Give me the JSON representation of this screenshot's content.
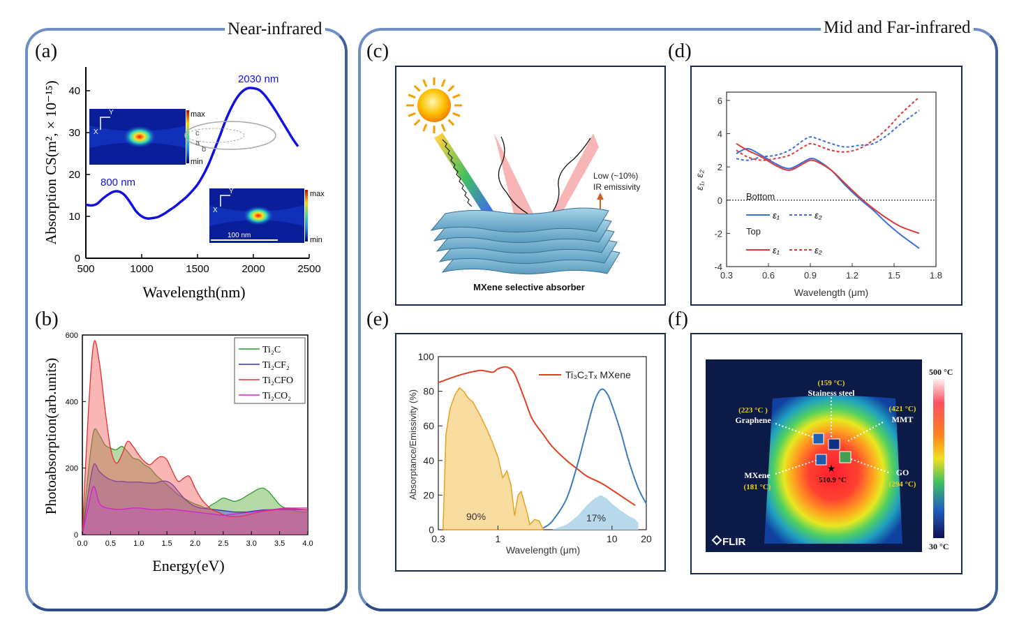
{
  "sections": {
    "left_title": "Near-infrared",
    "right_title": "Mid and Far-infrared"
  },
  "panel_letters": {
    "a": "(a)",
    "b": "(b)",
    "c": "(c)",
    "d": "(d)",
    "e": "(e)",
    "f": "(f)"
  },
  "chart_data": [
    {
      "panel": "a",
      "type": "line",
      "xlabel": "Wavelength(nm)",
      "ylabel": "Absorption CS(m², × 10⁻¹⁵)",
      "xlim": [
        500,
        2500
      ],
      "ylim": [
        0,
        45
      ],
      "xticks": [
        500,
        1000,
        1500,
        2000,
        2500
      ],
      "yticks": [
        0,
        10,
        20,
        30,
        40
      ],
      "color": "#1010e0",
      "x": [
        500,
        550,
        600,
        650,
        700,
        750,
        800,
        850,
        900,
        950,
        1000,
        1050,
        1100,
        1150,
        1200,
        1250,
        1300,
        1350,
        1400,
        1450,
        1500,
        1550,
        1600,
        1650,
        1700,
        1750,
        1800,
        1850,
        1900,
        1950,
        2000,
        2050,
        2100,
        2150,
        2200,
        2250,
        2300,
        2350,
        2400
      ],
      "y": [
        12.8,
        12.6,
        13.0,
        14.2,
        15.2,
        15.9,
        15.9,
        15.0,
        13.2,
        11.2,
        10.0,
        9.5,
        9.6,
        9.9,
        10.6,
        11.5,
        12.4,
        13.5,
        14.6,
        16.0,
        17.6,
        19.8,
        22.5,
        25.8,
        29.2,
        32.8,
        35.8,
        38.2,
        39.8,
        40.6,
        40.6,
        40.2,
        39.0,
        37.2,
        35.2,
        33.0,
        30.8,
        28.6,
        26.7
      ],
      "annotations": [
        "2030 nm",
        "800 nm"
      ],
      "inset_labels": {
        "max": "max",
        "min": "min",
        "c": "c",
        "a": "a",
        "b": "b",
        "scale": "100 nm",
        "axis_x": "X",
        "axis_y": "Y"
      }
    },
    {
      "panel": "b",
      "type": "area",
      "xlabel": "Energy(eV)",
      "ylabel": "Photoabsorption(arb.units)",
      "xlim": [
        0.0,
        4.0
      ],
      "ylim": [
        0,
        600
      ],
      "xticks": [
        "0.0",
        "0.5",
        "1.0",
        "1.5",
        "2.0",
        "2.5",
        "3.0",
        "3.5",
        "4.0"
      ],
      "yticks": [
        "0",
        "200",
        "400",
        "600"
      ],
      "x": [
        0.0,
        0.1,
        0.2,
        0.3,
        0.4,
        0.5,
        0.6,
        0.7,
        0.8,
        0.9,
        1.0,
        1.1,
        1.2,
        1.3,
        1.4,
        1.5,
        1.6,
        1.7,
        1.8,
        1.9,
        2.0,
        2.1,
        2.2,
        2.3,
        2.4,
        2.5,
        2.6,
        2.7,
        2.8,
        2.9,
        3.0,
        3.1,
        3.2,
        3.3,
        3.4,
        3.5,
        3.6,
        3.7,
        3.8,
        3.9,
        4.0
      ],
      "series": [
        {
          "name": "Ti₂C",
          "color": "#2e9e2e",
          "fill": "rgba(90,170,60,0.45)",
          "values": [
            0,
            180,
            310,
            300,
            270,
            260,
            255,
            265,
            250,
            230,
            225,
            210,
            200,
            180,
            165,
            150,
            135,
            120,
            110,
            100,
            92,
            86,
            80,
            90,
            100,
            110,
            105,
            100,
            105,
            115,
            125,
            135,
            140,
            130,
            110,
            90,
            80,
            75,
            70,
            68,
            68
          ]
        },
        {
          "name": "Ti₂CF₂",
          "color": "#3030c0",
          "fill": "rgba(80,70,200,0.40)",
          "values": [
            0,
            120,
            210,
            190,
            175,
            165,
            160,
            160,
            158,
            158,
            158,
            156,
            155,
            155,
            160,
            160,
            150,
            130,
            110,
            95,
            85,
            80,
            78,
            76,
            74,
            72,
            70,
            68,
            68,
            68,
            70,
            72,
            74,
            75,
            75,
            75,
            75,
            75,
            75,
            75,
            75
          ]
        },
        {
          "name": "Ti₂CFO",
          "color": "#e03030",
          "fill": "rgba(245,90,90,0.45)",
          "values": [
            0,
            350,
            575,
            520,
            380,
            260,
            215,
            240,
            280,
            265,
            240,
            220,
            210,
            225,
            235,
            225,
            190,
            160,
            170,
            175,
            140,
            110,
            90,
            75,
            68,
            60,
            55,
            54,
            55,
            58,
            62,
            66,
            70,
            72,
            74,
            76,
            78,
            78,
            77,
            76,
            75
          ]
        },
        {
          "name": "Ti₂CO₂",
          "color": "#d020d0",
          "fill": "rgba(200,70,200,0.30)",
          "values": [
            0,
            80,
            145,
            95,
            82,
            78,
            76,
            76,
            78,
            80,
            80,
            78,
            76,
            75,
            76,
            77,
            76,
            74,
            72,
            70,
            68,
            66,
            64,
            62,
            60,
            58,
            60,
            62,
            64,
            66,
            68,
            70,
            72,
            74,
            76,
            78,
            80,
            80,
            80,
            80,
            80
          ]
        }
      ]
    },
    {
      "panel": "c",
      "type": "diagram",
      "caption": "MXene selective absorber",
      "note_line1": "Low (~10%)",
      "note_line2": "IR emissivity"
    },
    {
      "panel": "d",
      "type": "line",
      "xlabel": "Wavelength (μm)",
      "ylabel": "ε₁, ε₂",
      "xlim": [
        0.3,
        1.8
      ],
      "ylim": [
        -4,
        6.5
      ],
      "xticks": [
        "0.3",
        "0.6",
        "0.9",
        "1.2",
        "1.5",
        "1.8"
      ],
      "yticks": [
        "-4",
        "-2",
        "0",
        "2",
        "4",
        "6"
      ],
      "legend": {
        "bottom": "Bottom",
        "top": "Top",
        "e1": "ε₁",
        "e2": "ε₂"
      },
      "x": [
        0.37,
        0.45,
        0.55,
        0.65,
        0.75,
        0.85,
        0.9,
        0.95,
        1.05,
        1.15,
        1.25,
        1.35,
        1.45,
        1.55,
        1.68
      ],
      "series": [
        {
          "name": "Bottom ε₁",
          "color": "#3a6fd8",
          "dash": false,
          "values": [
            2.8,
            3.1,
            2.7,
            2.2,
            1.9,
            2.3,
            2.5,
            2.4,
            1.8,
            0.9,
            0.1,
            -0.6,
            -1.4,
            -2.1,
            -2.9
          ]
        },
        {
          "name": "Bottom ε₂",
          "color": "#3a6fd8",
          "dash": true,
          "values": [
            2.5,
            2.4,
            2.6,
            2.7,
            3.0,
            3.6,
            3.8,
            3.7,
            3.4,
            3.2,
            3.3,
            3.4,
            3.9,
            4.6,
            5.4
          ]
        },
        {
          "name": "Top ε₁",
          "color": "#d83a3a",
          "dash": false,
          "values": [
            3.4,
            3.0,
            2.6,
            2.1,
            1.8,
            2.2,
            2.4,
            2.3,
            1.8,
            1.0,
            0.2,
            -0.5,
            -1.1,
            -1.6,
            -2.0
          ]
        },
        {
          "name": "Top ε₂",
          "color": "#d83a3a",
          "dash": true,
          "values": [
            3.0,
            2.6,
            2.4,
            2.5,
            2.7,
            3.2,
            3.4,
            3.3,
            3.0,
            2.9,
            3.1,
            3.6,
            4.3,
            5.2,
            6.2
          ]
        }
      ]
    },
    {
      "panel": "e",
      "type": "line",
      "xlabel": "Wavelength (μm)",
      "ylabel": "Absorptance/Emissivity (%)",
      "xscale": "log",
      "xlim": [
        0.3,
        20
      ],
      "ylim": [
        0,
        100
      ],
      "xticks": [
        "0.3",
        "1",
        "10",
        "20"
      ],
      "yticks": [
        "0",
        "20",
        "40",
        "60",
        "80",
        "100"
      ],
      "legend": "Ti₃C₂Tₓ MXene",
      "area_labels": [
        "90%",
        "17%"
      ],
      "series": [
        {
          "name": "Ti₃C₂Tₓ MXene",
          "color": "#e04020",
          "x": [
            0.3,
            0.4,
            0.5,
            0.7,
            0.9,
            1.0,
            1.2,
            1.4,
            1.7,
            2.0,
            2.5,
            3.0,
            4.0,
            5.0,
            6.0,
            8.0,
            10.0,
            13.0,
            16.0
          ],
          "values": [
            85,
            88,
            90,
            92,
            91,
            93,
            94,
            90,
            76,
            64,
            55,
            48,
            40,
            35,
            31,
            27,
            23,
            18,
            14
          ]
        },
        {
          "name": "",
          "color": "#3a7ac0",
          "x": [
            2.5,
            3.0,
            4.0,
            5.0,
            6.0,
            7.0,
            8.0,
            9.0,
            10.0,
            12.0,
            14.0,
            17.0,
            20.0
          ],
          "values": [
            1,
            5,
            18,
            38,
            58,
            74,
            81,
            79,
            72,
            56,
            40,
            24,
            15
          ]
        }
      ]
    },
    {
      "panel": "f",
      "type": "heatmap",
      "colorbar_max": "500 °C",
      "colorbar_min": "30 °C",
      "center_temp": "510.9 °C",
      "brand": "FLIR",
      "labels": [
        {
          "name": "Stainess steel",
          "temp": "(159 °C)"
        },
        {
          "name": "Graphene",
          "temp": "(223 °C )"
        },
        {
          "name": "MMT",
          "temp": "(421 °C)"
        },
        {
          "name": "MXene",
          "temp": "(181 °C)"
        },
        {
          "name": "GO",
          "temp": "(294 °C)"
        }
      ]
    }
  ]
}
